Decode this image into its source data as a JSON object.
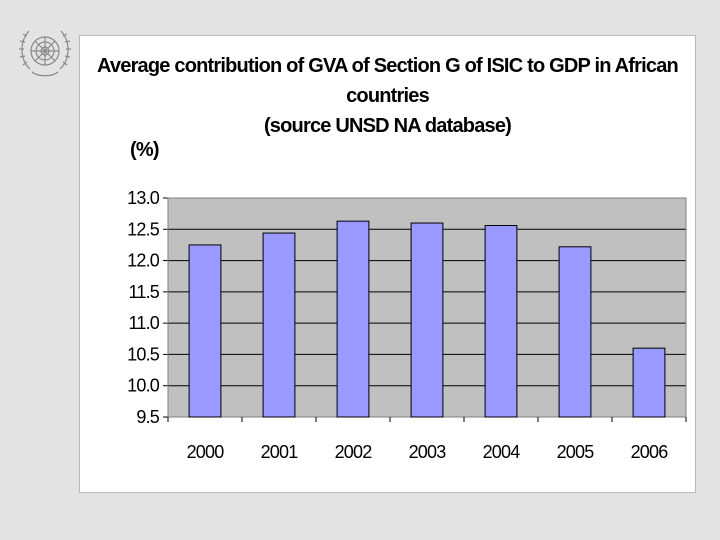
{
  "logo": {
    "name": "un-emblem"
  },
  "chart_data": {
    "type": "bar",
    "title_lines": [
      "Average contribution of GVA of Section G of ISIC to GDP in African",
      "countries",
      "(source UNSD NA database)"
    ],
    "ylabel": "(%)",
    "xlabel": "",
    "categories": [
      "2000",
      "2001",
      "2002",
      "2003",
      "2004",
      "2005",
      "2006"
    ],
    "values": [
      12.25,
      12.44,
      12.63,
      12.6,
      12.56,
      12.22,
      10.6
    ],
    "ylim": [
      9.5,
      13.0
    ],
    "yticks": [
      "9.5",
      "10.0",
      "10.5",
      "11.0",
      "11.5",
      "12.0",
      "12.5",
      "13.0"
    ],
    "grid": true,
    "legend": "none",
    "colors": {
      "bar": "#9999ff",
      "plot_background": "#c0c0c0",
      "grid": "#000000"
    }
  }
}
